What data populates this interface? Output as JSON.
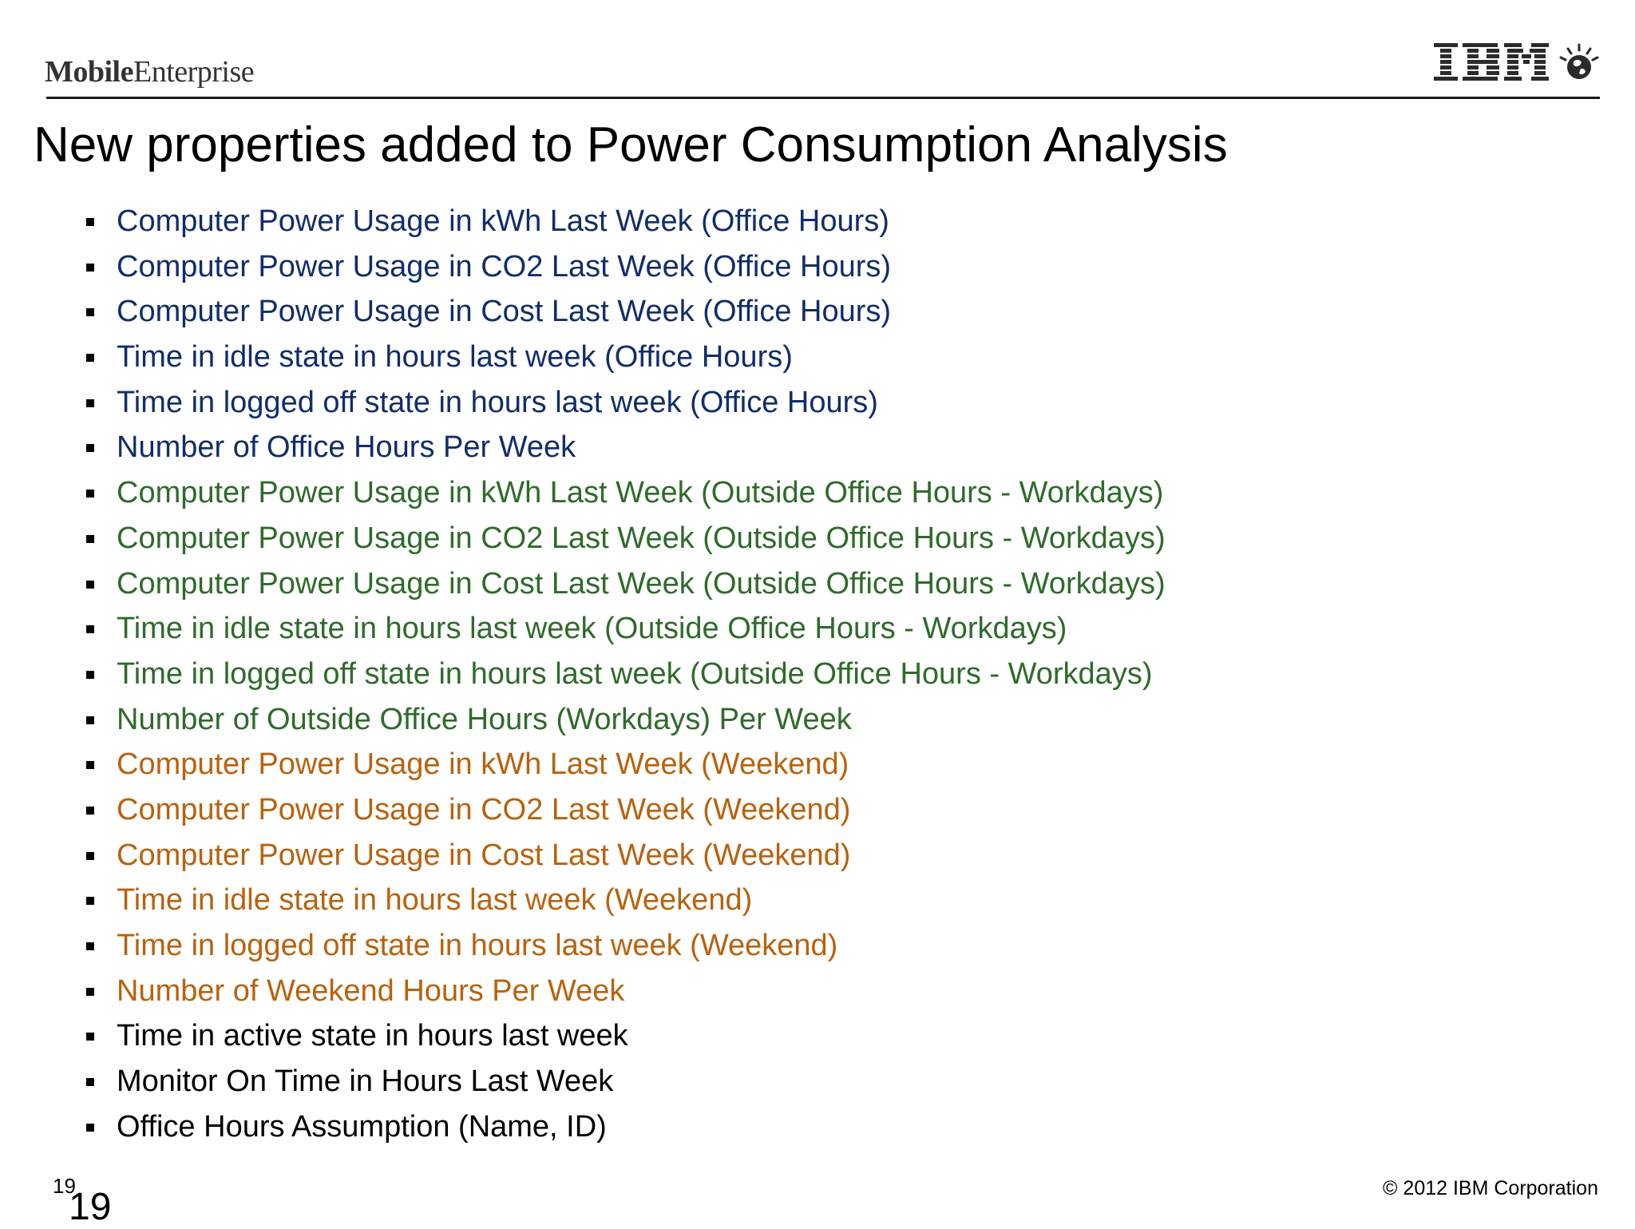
{
  "header": {
    "brand_bold": "Mobile",
    "brand_regular": "Enterprise",
    "logo_icon": "ibm-logo-icon",
    "globe_icon": "globe-icon"
  },
  "slide": {
    "title": "New properties added to Power Consumption Analysis",
    "bullets": [
      {
        "text": "Computer Power Usage in kWh Last Week (Office Hours)",
        "color": "#112d6a"
      },
      {
        "text": "Computer Power Usage in CO2 Last Week (Office Hours)",
        "color": "#112d6a"
      },
      {
        "text": "Computer Power Usage in Cost Last Week (Office Hours)",
        "color": "#112d6a"
      },
      {
        "text": "Time in idle state in hours last week (Office Hours)",
        "color": "#112d6a"
      },
      {
        "text": "Time in logged off state in hours last week (Office Hours)",
        "color": "#112d6a"
      },
      {
        "text": "Number of Office Hours Per Week",
        "color": "#112d6a"
      },
      {
        "text": "Computer Power Usage in kWh Last Week (Outside Office Hours - Workdays)",
        "color": "#2e6b2a"
      },
      {
        "text": "Computer Power Usage in CO2 Last Week (Outside Office Hours - Workdays)",
        "color": "#2e6b2a"
      },
      {
        "text": "Computer Power Usage in Cost Last Week (Outside Office Hours - Workdays)",
        "color": "#2e6b2a"
      },
      {
        "text": "Time in idle state in hours last week (Outside Office Hours - Workdays)",
        "color": "#2e6b2a"
      },
      {
        "text": "Time in logged off state in hours last week (Outside Office Hours - Workdays)",
        "color": "#2e6b2a"
      },
      {
        "text": "Number of Outside Office Hours (Workdays) Per Week",
        "color": "#2e6b2a"
      },
      {
        "text": "Computer Power Usage in kWh Last Week (Weekend)",
        "color": "#b8620e"
      },
      {
        "text": "Computer Power Usage in CO2 Last Week (Weekend)",
        "color": "#b8620e"
      },
      {
        "text": "Computer Power Usage in Cost Last Week (Weekend)",
        "color": "#b8620e"
      },
      {
        "text": "Time in idle state in hours last week (Weekend)",
        "color": "#b8620e"
      },
      {
        "text": "Time in logged off state in hours last week (Weekend)",
        "color": "#b8620e"
      },
      {
        "text": "Number of Weekend Hours Per Week",
        "color": "#b8620e"
      },
      {
        "text": "Time in active state in hours last week",
        "color": "#000000"
      },
      {
        "text": "Monitor On Time in Hours Last Week",
        "color": "#000000"
      },
      {
        "text": "Office Hours Assumption (Name, ID)",
        "color": "#000000"
      }
    ]
  },
  "footer": {
    "page_number_small": "19",
    "page_number_large": "19",
    "copyright": "© 2012 IBM Corporation"
  }
}
